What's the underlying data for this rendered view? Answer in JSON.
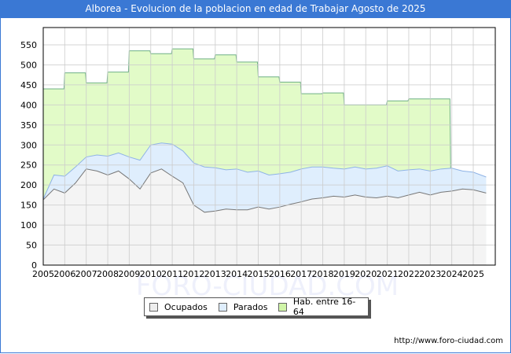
{
  "title": "Alborea - Evolucion de la poblacion en edad de Trabajar Agosto de 2025",
  "footer_url": "http://www.foro-ciudad.com",
  "watermark": "FORO-CIUDAD.COM",
  "colors": {
    "title_bg": "#3a78d4",
    "hab_fill": "#e2fbc8",
    "hab_line": "#6fb085",
    "parados_fill": "#dfeefd",
    "parados_line": "#8fb3e6",
    "ocupados_fill": "#f4f4f4",
    "ocupados_line": "#777777",
    "grid": "#cccccc"
  },
  "legend": [
    {
      "label": "Ocupados",
      "color": "#eeeeee"
    },
    {
      "label": "Parados",
      "color": "#dfeefd"
    },
    {
      "label": "Hab. entre 16-64",
      "color": "#d0f5a8"
    }
  ],
  "chart_data": {
    "type": "area",
    "title": "Alborea - Evolucion de la poblacion en edad de Trabajar Agosto de 2025",
    "xlabel": "",
    "ylabel": "",
    "ylim": [
      0,
      590
    ],
    "yticks": [
      0,
      50,
      100,
      150,
      200,
      250,
      300,
      350,
      400,
      450,
      500,
      550
    ],
    "xticks": [
      "2005",
      "2006",
      "2007",
      "2008",
      "2009",
      "2010",
      "2011",
      "2012",
      "2013",
      "2014",
      "2015",
      "2016",
      "2017",
      "2018",
      "2019",
      "2020",
      "2021",
      "2022",
      "2023",
      "2024",
      "2025"
    ],
    "grid": true,
    "legend_position": "bottom",
    "series": [
      {
        "name": "Hab. entre 16-64",
        "note": "annual step values (Jan each year), series ends 2023",
        "x": [
          2005,
          2006,
          2007,
          2008,
          2009,
          2010,
          2011,
          2012,
          2013,
          2014,
          2015,
          2016,
          2017,
          2018,
          2019,
          2020,
          2021,
          2022,
          2023
        ],
        "values": [
          440,
          480,
          455,
          482,
          535,
          528,
          540,
          515,
          525,
          507,
          470,
          457,
          428,
          430,
          400,
          400,
          410,
          415,
          415
        ]
      },
      {
        "name": "Parados",
        "note": "approximate; plotted as Ocupados + Parados (upper blue edge), sampled semi-annually",
        "x": [
          2005.0,
          2005.5,
          2006.0,
          2006.5,
          2007.0,
          2007.5,
          2008.0,
          2008.5,
          2009.0,
          2009.5,
          2010.0,
          2010.5,
          2011.0,
          2011.5,
          2012.0,
          2012.5,
          2013.0,
          2013.5,
          2014.0,
          2014.5,
          2015.0,
          2015.5,
          2016.0,
          2016.5,
          2017.0,
          2017.5,
          2018.0,
          2018.5,
          2019.0,
          2019.5,
          2020.0,
          2020.5,
          2021.0,
          2021.5,
          2022.0,
          2022.5,
          2023.0,
          2023.5,
          2024.0,
          2024.5,
          2025.0,
          2025.6
        ],
        "values": [
          165,
          225,
          222,
          245,
          270,
          275,
          272,
          280,
          270,
          262,
          300,
          305,
          302,
          285,
          255,
          245,
          243,
          238,
          240,
          232,
          235,
          225,
          228,
          232,
          240,
          245,
          245,
          242,
          240,
          245,
          240,
          242,
          248,
          235,
          238,
          240,
          235,
          240,
          242,
          235,
          232,
          220
        ]
      },
      {
        "name": "Ocupados",
        "x": [
          2005.0,
          2005.5,
          2006.0,
          2006.5,
          2007.0,
          2007.5,
          2008.0,
          2008.5,
          2009.0,
          2009.5,
          2010.0,
          2010.5,
          2011.0,
          2011.5,
          2012.0,
          2012.5,
          2013.0,
          2013.5,
          2014.0,
          2014.5,
          2015.0,
          2015.5,
          2016.0,
          2016.5,
          2017.0,
          2017.5,
          2018.0,
          2018.5,
          2019.0,
          2019.5,
          2020.0,
          2020.5,
          2021.0,
          2021.5,
          2022.0,
          2022.5,
          2023.0,
          2023.5,
          2024.0,
          2024.5,
          2025.0,
          2025.6
        ],
        "values": [
          163,
          190,
          180,
          205,
          240,
          235,
          225,
          235,
          215,
          190,
          230,
          240,
          222,
          205,
          150,
          132,
          135,
          140,
          138,
          138,
          145,
          140,
          145,
          152,
          158,
          165,
          168,
          172,
          170,
          175,
          170,
          168,
          172,
          168,
          175,
          182,
          175,
          182,
          185,
          190,
          188,
          180
        ]
      }
    ]
  }
}
